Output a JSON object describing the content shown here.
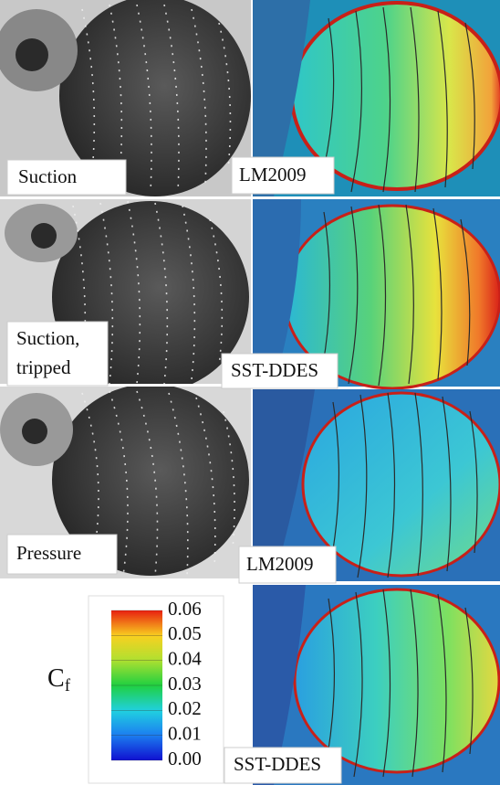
{
  "panels": [
    {
      "photo_label": [
        "Suction"
      ],
      "cfd_label": "LM2009"
    },
    {
      "photo_label": [
        "Suction,",
        "tripped"
      ],
      "cfd_label": "SST-DDES"
    },
    {
      "photo_label": [
        "Pressure"
      ],
      "cfd_label": "LM2009"
    },
    {
      "cfd_label": "SST-DDES"
    }
  ],
  "colorbar": {
    "label": "C",
    "label_subscript": "f",
    "lim": [
      0,
      0.06
    ],
    "ticks": [
      {
        "value": 0,
        "label": "0.00"
      },
      0.01,
      0.02,
      0.03,
      0.04,
      0.05,
      0.06
    ]
  }
}
